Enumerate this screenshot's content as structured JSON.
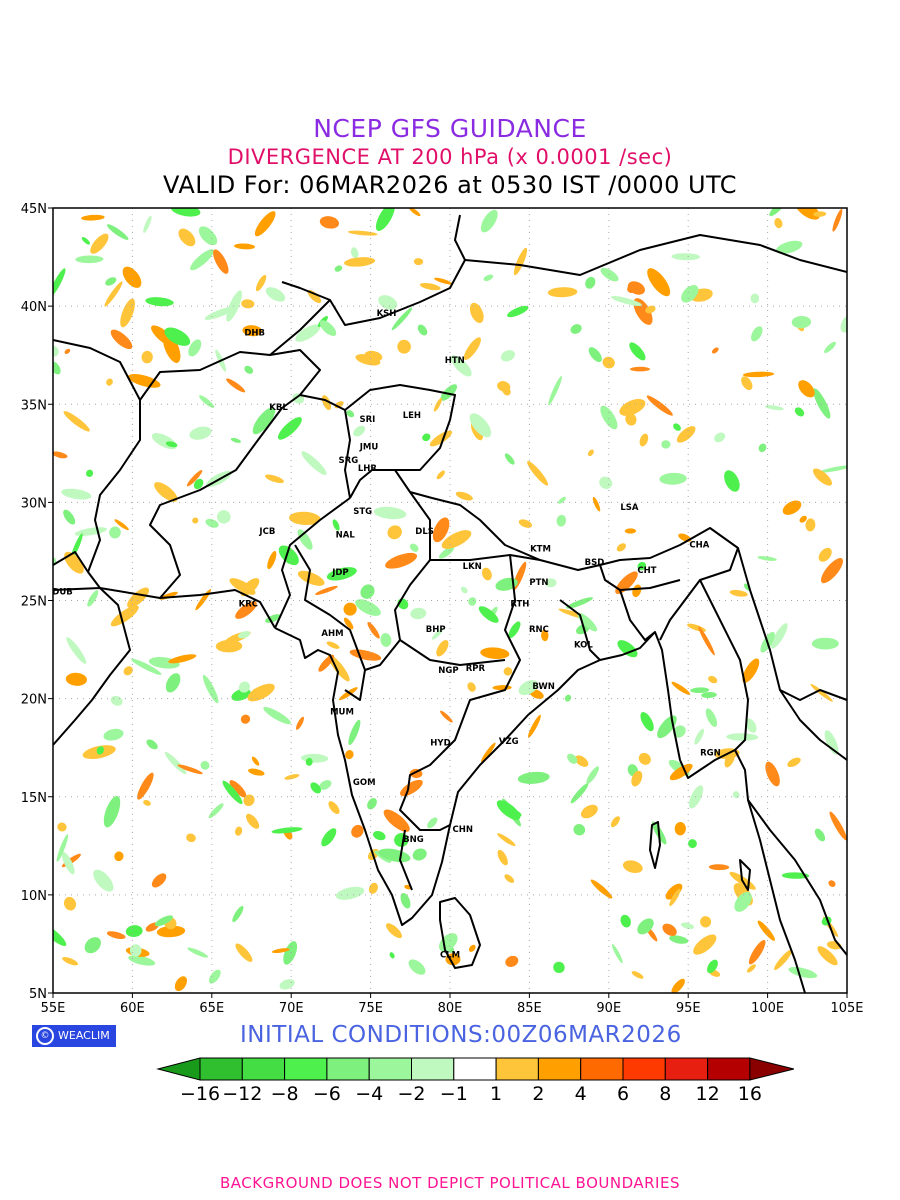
{
  "title": "NCEP GFS GUIDANCE",
  "subtitle": "DIVERGENCE AT 200 hPa (x 0.0001 /sec)",
  "valid_line": "VALID For: 06MAR2026 at 0530 IST /0000 UTC",
  "initial_conditions": "INITIAL  CONDITIONS:00Z06MAR2026",
  "logo_text": "WEACLIM",
  "footer": "BACKGROUND DOES NOT DEPICT POLITICAL BOUNDARIES",
  "map": {
    "lon_range": [
      55,
      105
    ],
    "lat_range": [
      5,
      45
    ],
    "lon_ticks": [
      "55E",
      "60E",
      "65E",
      "70E",
      "75E",
      "80E",
      "85E",
      "90E",
      "95E",
      "100E",
      "105E"
    ],
    "lat_ticks": [
      "5N",
      "10N",
      "15N",
      "20N",
      "25N",
      "30N",
      "35N",
      "40N",
      "45N"
    ],
    "grid": true,
    "stations": [
      {
        "code": "KSH",
        "lon": 76.0,
        "lat": 39.5
      },
      {
        "code": "DHB",
        "lon": 67.7,
        "lat": 38.5
      },
      {
        "code": "HTN",
        "lon": 80.3,
        "lat": 37.1
      },
      {
        "code": "KBL",
        "lon": 69.2,
        "lat": 34.7
      },
      {
        "code": "SRI",
        "lon": 74.8,
        "lat": 34.1
      },
      {
        "code": "LEH",
        "lon": 77.6,
        "lat": 34.3
      },
      {
        "code": "JMU",
        "lon": 74.9,
        "lat": 32.7
      },
      {
        "code": "SRG",
        "lon": 73.6,
        "lat": 32.0
      },
      {
        "code": "LHR",
        "lon": 74.8,
        "lat": 31.6
      },
      {
        "code": "LSA",
        "lon": 91.3,
        "lat": 29.6
      },
      {
        "code": "STG",
        "lon": 74.5,
        "lat": 29.4
      },
      {
        "code": "JCB",
        "lon": 68.5,
        "lat": 28.4
      },
      {
        "code": "DLS",
        "lon": 78.4,
        "lat": 28.4
      },
      {
        "code": "NAL",
        "lon": 73.4,
        "lat": 28.2
      },
      {
        "code": "CHA",
        "lon": 95.7,
        "lat": 27.7
      },
      {
        "code": "KTM",
        "lon": 85.7,
        "lat": 27.5
      },
      {
        "code": "BSD",
        "lon": 89.1,
        "lat": 26.8
      },
      {
        "code": "LKN",
        "lon": 81.4,
        "lat": 26.6
      },
      {
        "code": "CHT",
        "lon": 92.4,
        "lat": 26.4
      },
      {
        "code": "JDP",
        "lon": 73.1,
        "lat": 26.3
      },
      {
        "code": "PTN",
        "lon": 85.6,
        "lat": 25.8
      },
      {
        "code": "DUB",
        "lon": 55.6,
        "lat": 25.3
      },
      {
        "code": "RTH",
        "lon": 84.4,
        "lat": 24.7
      },
      {
        "code": "KRC",
        "lon": 67.3,
        "lat": 24.7
      },
      {
        "code": "RNC",
        "lon": 85.6,
        "lat": 23.4
      },
      {
        "code": "AHM",
        "lon": 72.6,
        "lat": 23.2
      },
      {
        "code": "BHP",
        "lon": 79.1,
        "lat": 23.4
      },
      {
        "code": "KOL",
        "lon": 88.4,
        "lat": 22.6
      },
      {
        "code": "NGP",
        "lon": 79.9,
        "lat": 21.3
      },
      {
        "code": "RPR",
        "lon": 81.6,
        "lat": 21.4
      },
      {
        "code": "BWN",
        "lon": 85.9,
        "lat": 20.5
      },
      {
        "code": "MUM",
        "lon": 73.2,
        "lat": 19.2
      },
      {
        "code": "HYD",
        "lon": 79.4,
        "lat": 17.6
      },
      {
        "code": "VZG",
        "lon": 83.7,
        "lat": 17.7
      },
      {
        "code": "RGN",
        "lon": 96.4,
        "lat": 17.1
      },
      {
        "code": "GOM",
        "lon": 74.6,
        "lat": 15.6
      },
      {
        "code": "CHN",
        "lon": 80.8,
        "lat": 13.2
      },
      {
        "code": "BNG",
        "lon": 77.7,
        "lat": 12.7
      },
      {
        "code": "CLM",
        "lon": 80.0,
        "lat": 6.8
      }
    ]
  },
  "colorbar": {
    "labels": [
      "−16",
      "−12",
      "−8",
      "−6",
      "−4",
      "−2",
      "−1",
      "1",
      "2",
      "4",
      "6",
      "8",
      "12",
      "16"
    ],
    "colors": [
      "#1a9a1a",
      "#2fbf2f",
      "#44dd44",
      "#4ef04e",
      "#7ef07e",
      "#9cf69c",
      "#bff9bf",
      "#ffffff",
      "#ffc53a",
      "#ffa000",
      "#ff6a00",
      "#ff3a00",
      "#e61f10",
      "#b40000",
      "#8a0000"
    ]
  }
}
